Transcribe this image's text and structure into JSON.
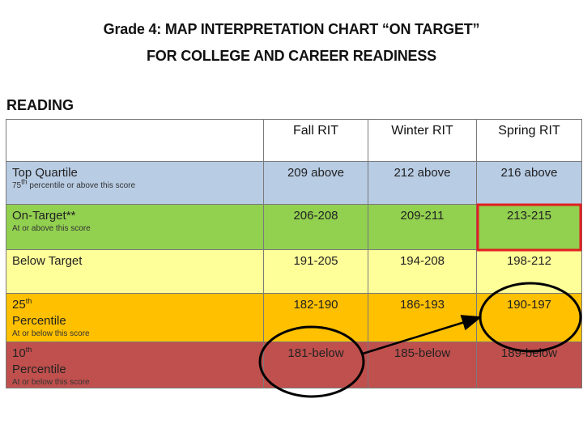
{
  "title": {
    "line1": "Grade 4: MAP INTERPRETATION CHART “ON TARGET”",
    "line2": "FOR COLLEGE AND CAREER READINESS"
  },
  "section": "READING",
  "columns": [
    "Fall RIT",
    "Winter RIT",
    "Spring RIT"
  ],
  "rows": [
    {
      "name": "Top Quartile",
      "subtitle_parts": [
        "75",
        "th",
        " percentile or above this score"
      ],
      "values": [
        "209 above",
        "212 above",
        "216 above"
      ],
      "color": "#b8cce4"
    },
    {
      "name": "On-Target**",
      "subtitle": "At or above this score",
      "values": [
        "206-208",
        "209-211",
        "213-215"
      ],
      "color": "#92d050"
    },
    {
      "name": "Below Target",
      "values": [
        "191-205",
        "194-208",
        "198-212"
      ],
      "color": "#ffff99"
    },
    {
      "name_parts": [
        "25",
        "th",
        "Percentile"
      ],
      "subtitle": "At or below this score",
      "values": [
        "182-190",
        "186-193",
        "190-197"
      ],
      "color": "#ffc000"
    },
    {
      "name_parts": [
        "10",
        "th",
        "Percentile"
      ],
      "subtitle": "At or below this score",
      "values": [
        "181-below",
        "185-below",
        "189-below"
      ],
      "color": "#c0504d"
    }
  ],
  "annotations": {
    "highlight_box_color": "#e02020",
    "circle_color": "#000000"
  }
}
